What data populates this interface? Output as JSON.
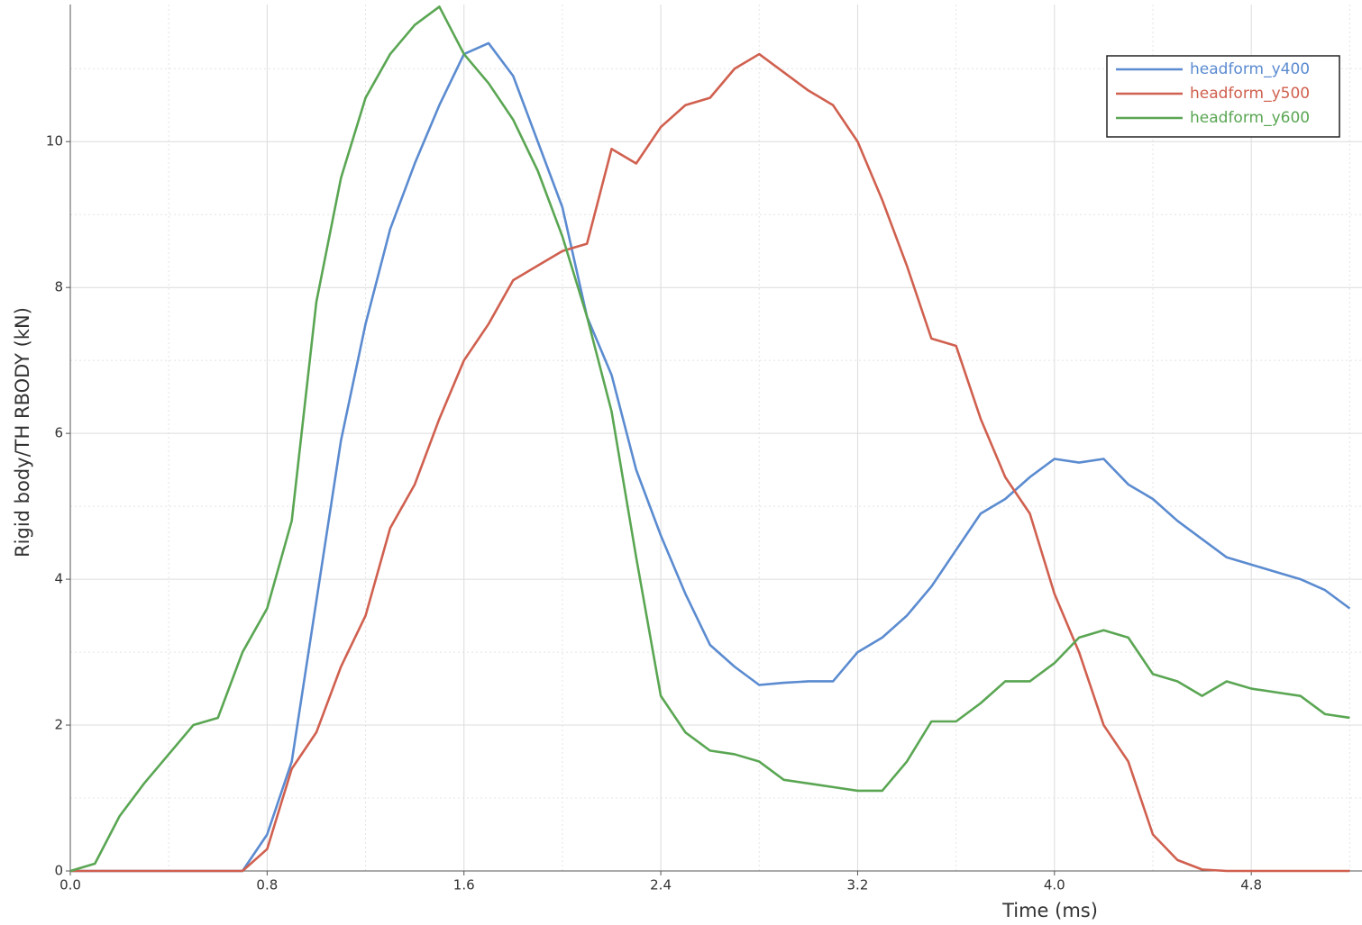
{
  "chart_data": {
    "type": "line",
    "xlabel": "Time (ms)",
    "ylabel": "Rigid body/TH RBODY (kN)",
    "x": [
      0.0,
      0.1,
      0.2,
      0.3,
      0.4,
      0.5,
      0.6,
      0.7,
      0.8,
      0.9,
      1.0,
      1.1,
      1.2,
      1.3,
      1.4,
      1.5,
      1.6,
      1.7,
      1.8,
      1.9,
      2.0,
      2.1,
      2.2,
      2.3,
      2.4,
      2.5,
      2.6,
      2.7,
      2.8,
      2.9,
      3.0,
      3.1,
      3.2,
      3.3,
      3.4,
      3.5,
      3.6,
      3.7,
      3.8,
      3.9,
      4.0,
      4.1,
      4.2,
      4.3,
      4.4,
      4.5,
      4.6,
      4.7,
      4.8,
      4.9,
      5.0,
      5.1,
      5.2
    ],
    "series": [
      {
        "name": "headform_y400",
        "color": "#5b8bd0",
        "values": [
          0,
          0,
          0,
          0,
          0,
          0,
          0,
          0,
          0.5,
          1.5,
          3.7,
          5.9,
          7.5,
          8.8,
          9.7,
          10.5,
          11.2,
          11.35,
          10.9,
          10.0,
          9.1,
          7.6,
          6.8,
          5.5,
          4.6,
          3.8,
          3.1,
          2.8,
          2.55,
          2.58,
          2.6,
          2.6,
          3.0,
          3.2,
          3.5,
          3.9,
          4.4,
          4.9,
          5.1,
          5.4,
          5.65,
          5.6,
          5.65,
          5.3,
          5.1,
          4.8,
          4.55,
          4.3,
          4.2,
          4.1,
          4.0,
          3.85,
          3.6
        ]
      },
      {
        "name": "headform_y500",
        "color": "#d0604f",
        "values": [
          0,
          0,
          0,
          0,
          0,
          0,
          0,
          0,
          0.3,
          1.4,
          1.9,
          2.8,
          3.5,
          4.7,
          5.3,
          6.2,
          7.0,
          7.5,
          8.1,
          8.3,
          8.5,
          8.6,
          9.9,
          9.7,
          10.2,
          10.5,
          10.6,
          11.0,
          11.2,
          10.95,
          10.7,
          10.5,
          10.0,
          9.2,
          8.3,
          7.3,
          7.2,
          6.2,
          5.4,
          4.9,
          3.8,
          3.0,
          2.0,
          1.5,
          0.5,
          0.15,
          0.02,
          0,
          0,
          0,
          0,
          0,
          0
        ]
      },
      {
        "name": "headform_y600",
        "color": "#5aa653",
        "values": [
          0,
          0.1,
          0.75,
          1.2,
          1.6,
          2.0,
          2.1,
          3.0,
          3.6,
          4.8,
          7.8,
          9.5,
          10.6,
          11.2,
          11.6,
          11.85,
          11.2,
          10.8,
          10.3,
          9.6,
          8.7,
          7.6,
          6.3,
          4.3,
          2.4,
          1.9,
          1.65,
          1.6,
          1.5,
          1.25,
          1.2,
          1.15,
          1.1,
          1.1,
          1.5,
          2.05,
          2.05,
          2.3,
          2.6,
          2.6,
          2.85,
          3.2,
          3.3,
          3.2,
          2.7,
          2.6,
          2.4,
          2.6,
          2.5,
          2.45,
          2.4,
          2.15,
          2.1
        ]
      }
    ],
    "xlim": [
      0,
      5.25
    ],
    "ylim": [
      0,
      11.88
    ],
    "xticks": [
      {
        "value": 0,
        "label": "0.0"
      },
      0.8,
      1.6,
      2.4,
      3.2,
      {
        "value": 4,
        "label": "4.0"
      },
      4.8
    ],
    "yticks": [
      0,
      2,
      4,
      6,
      8,
      10
    ],
    "grid": true,
    "legend": "upper right"
  }
}
